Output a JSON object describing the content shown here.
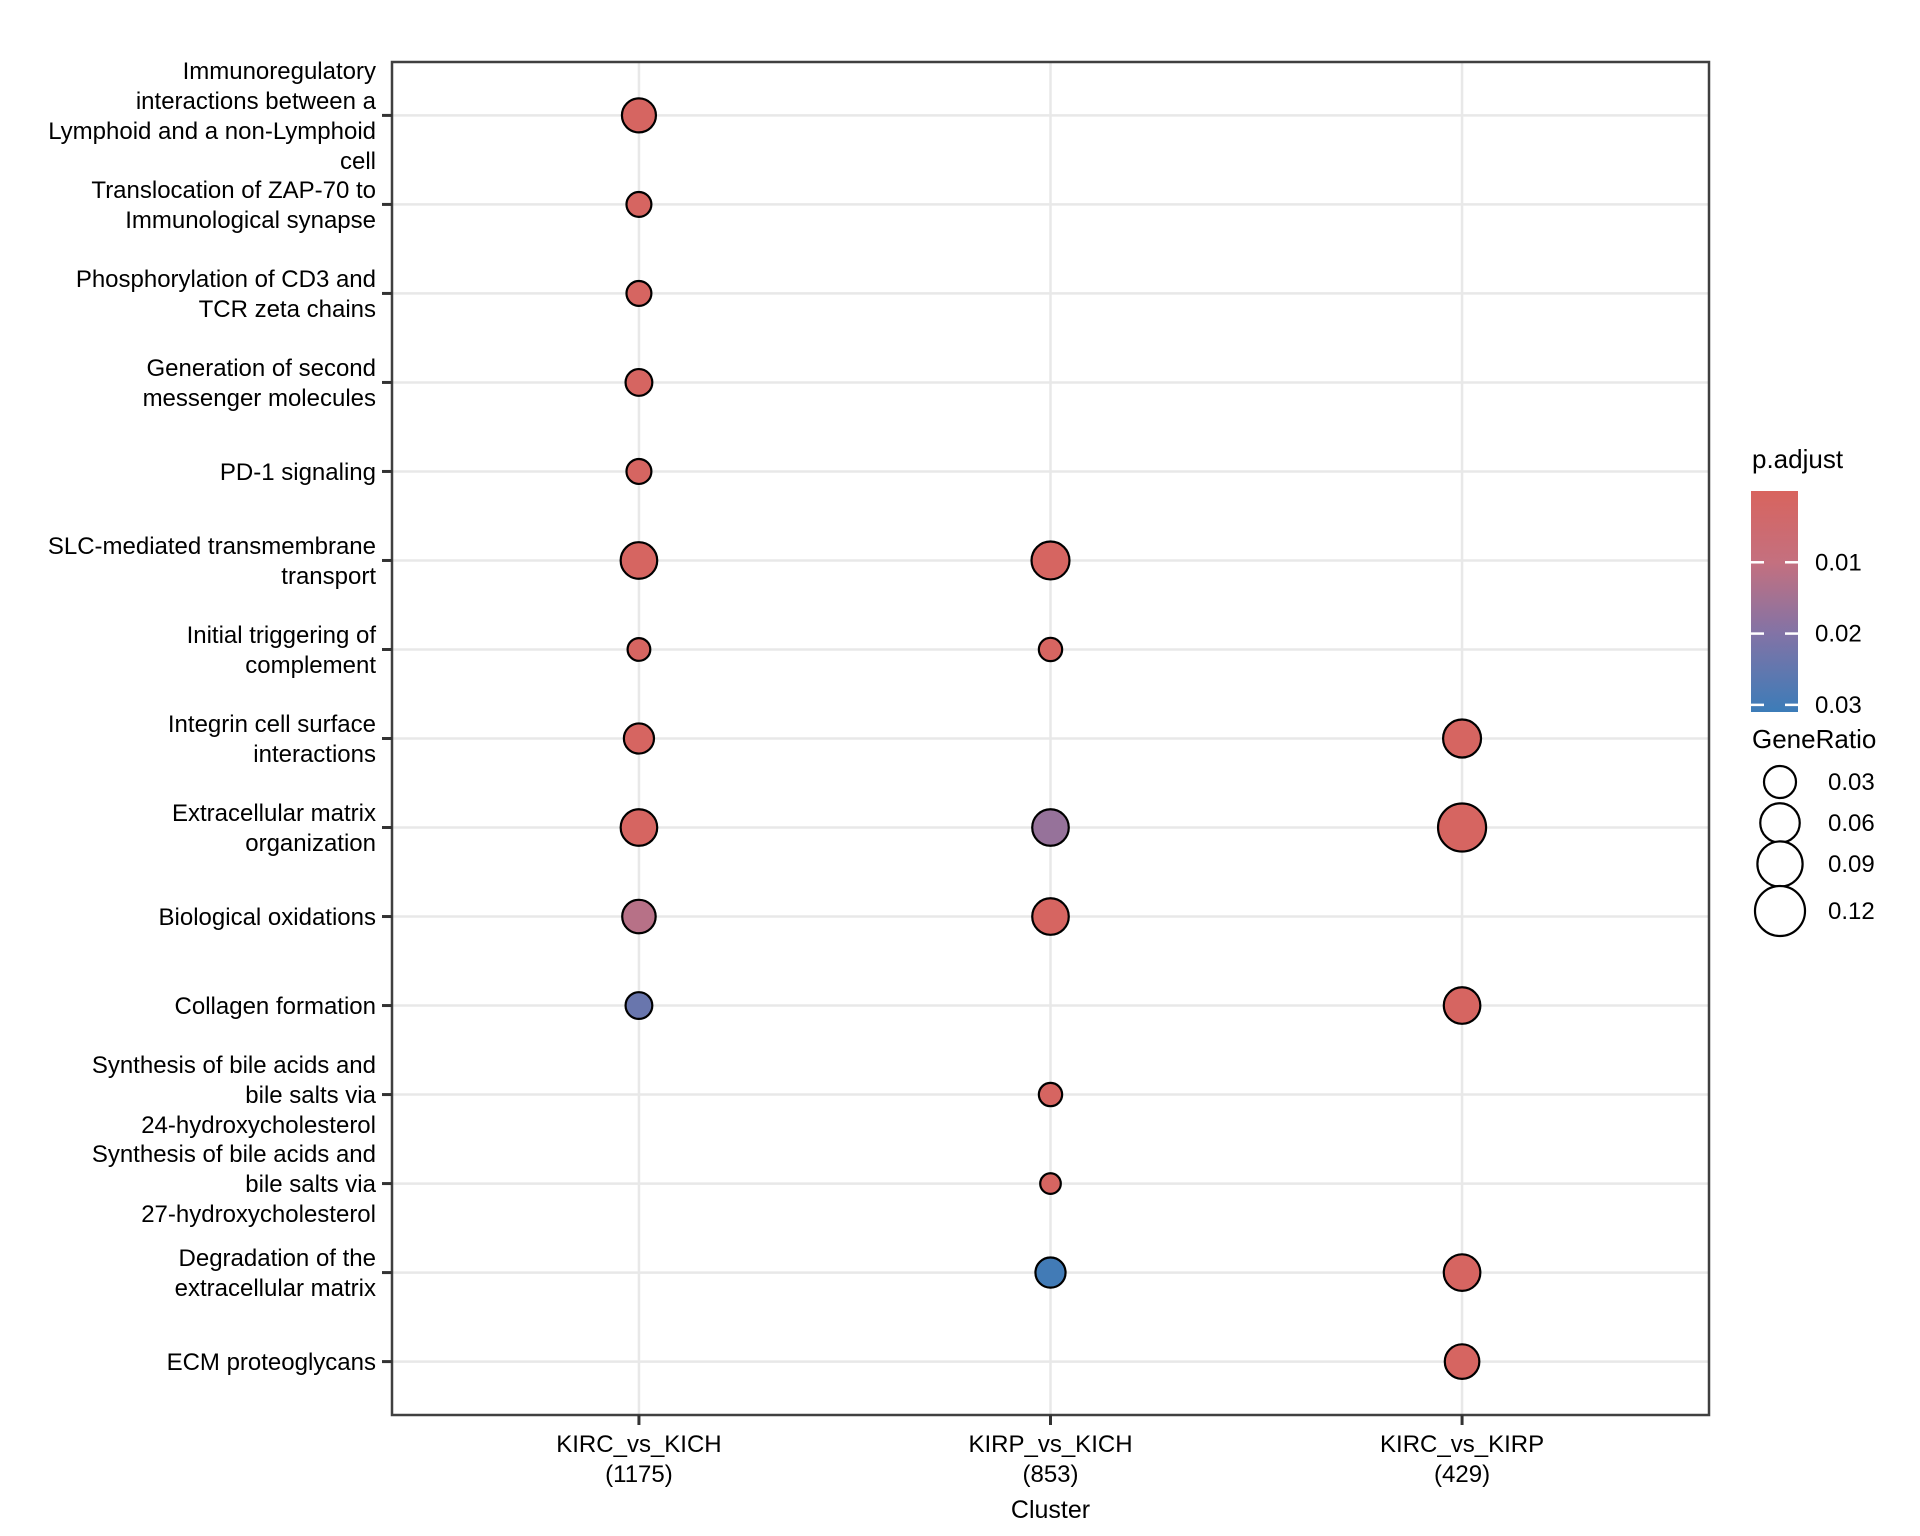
{
  "chart_data": {
    "type": "scatter",
    "subtype": "enrichment-dotplot",
    "title": "",
    "xlabel": "Cluster",
    "ylabel": "",
    "grid": "major-only",
    "legend_position": "right",
    "clusters": [
      {
        "label": "KIRC_vs_KICH",
        "count": "(1175)"
      },
      {
        "label": "KIRP_vs_KICH",
        "count": "(853)"
      },
      {
        "label": "KIRC_vs_KIRP",
        "count": "(429)"
      }
    ],
    "categories": [
      {
        "name": "Immunoregulatory interactions between a Lymphoid and a non-Lymphoid cell",
        "lines": [
          "Immunoregulatory",
          "interactions between a",
          "Lymphoid and a non-Lymphoid",
          "cell"
        ]
      },
      {
        "name": "Translocation of ZAP-70 to Immunological synapse",
        "lines": [
          "Translocation of ZAP-70 to",
          "Immunological synapse"
        ]
      },
      {
        "name": "Phosphorylation of CD3 and TCR zeta chains",
        "lines": [
          "Phosphorylation of CD3 and",
          "TCR zeta chains"
        ]
      },
      {
        "name": "Generation of second messenger molecules",
        "lines": [
          "Generation of second",
          "messenger molecules"
        ]
      },
      {
        "name": "PD-1 signaling",
        "lines": [
          "PD-1 signaling"
        ]
      },
      {
        "name": "SLC-mediated transmembrane transport",
        "lines": [
          "SLC-mediated transmembrane",
          "transport"
        ]
      },
      {
        "name": "Initial triggering of complement",
        "lines": [
          "Initial triggering of",
          "complement"
        ]
      },
      {
        "name": "Integrin cell surface interactions",
        "lines": [
          "Integrin cell surface",
          "interactions"
        ]
      },
      {
        "name": "Extracellular matrix organization",
        "lines": [
          "Extracellular matrix",
          "organization"
        ]
      },
      {
        "name": "Biological oxidations",
        "lines": [
          "Biological oxidations"
        ]
      },
      {
        "name": "Collagen formation",
        "lines": [
          "Collagen formation"
        ]
      },
      {
        "name": "Synthesis of bile acids and bile salts via 24-hydroxycholesterol",
        "lines": [
          "Synthesis of bile acids and",
          "bile salts via",
          "24-hydroxycholesterol"
        ]
      },
      {
        "name": "Synthesis of bile acids and bile salts via 27-hydroxycholesterol",
        "lines": [
          "Synthesis of bile acids and",
          "bile salts via",
          "27-hydroxycholesterol"
        ]
      },
      {
        "name": "Degradation of the extracellular matrix",
        "lines": [
          "Degradation of the",
          "extracellular matrix"
        ]
      },
      {
        "name": "ECM proteoglycans",
        "lines": [
          "ECM proteoglycans"
        ]
      }
    ],
    "points": [
      {
        "cluster": 0,
        "category": 0,
        "gene_ratio": 0.037,
        "p_adjust": 0.001
      },
      {
        "cluster": 0,
        "category": 1,
        "gene_ratio": 0.011,
        "p_adjust": 0.001
      },
      {
        "cluster": 0,
        "category": 2,
        "gene_ratio": 0.011,
        "p_adjust": 0.001
      },
      {
        "cluster": 0,
        "category": 3,
        "gene_ratio": 0.015,
        "p_adjust": 0.001
      },
      {
        "cluster": 0,
        "category": 4,
        "gene_ratio": 0.011,
        "p_adjust": 0.001
      },
      {
        "cluster": 0,
        "category": 5,
        "gene_ratio": 0.047,
        "p_adjust": 0.001
      },
      {
        "cluster": 0,
        "category": 6,
        "gene_ratio": 0.007,
        "p_adjust": 0.001
      },
      {
        "cluster": 0,
        "category": 7,
        "gene_ratio": 0.024,
        "p_adjust": 0.001
      },
      {
        "cluster": 0,
        "category": 8,
        "gene_ratio": 0.047,
        "p_adjust": 0.001
      },
      {
        "cluster": 0,
        "category": 9,
        "gene_ratio": 0.035,
        "p_adjust": 0.012
      },
      {
        "cluster": 0,
        "category": 10,
        "gene_ratio": 0.015,
        "p_adjust": 0.024
      },
      {
        "cluster": 1,
        "category": 5,
        "gene_ratio": 0.053,
        "p_adjust": 0.001
      },
      {
        "cluster": 1,
        "category": 6,
        "gene_ratio": 0.008,
        "p_adjust": 0.001
      },
      {
        "cluster": 1,
        "category": 8,
        "gene_ratio": 0.047,
        "p_adjust": 0.017
      },
      {
        "cluster": 1,
        "category": 9,
        "gene_ratio": 0.047,
        "p_adjust": 0.001
      },
      {
        "cluster": 1,
        "category": 11,
        "gene_ratio": 0.008,
        "p_adjust": 0.001
      },
      {
        "cluster": 1,
        "category": 12,
        "gene_ratio": 0.004,
        "p_adjust": 0.001
      },
      {
        "cluster": 1,
        "category": 13,
        "gene_ratio": 0.024,
        "p_adjust": 0.03
      },
      {
        "cluster": 2,
        "category": 7,
        "gene_ratio": 0.053,
        "p_adjust": 0.001
      },
      {
        "cluster": 2,
        "category": 8,
        "gene_ratio": 0.107,
        "p_adjust": 0.001
      },
      {
        "cluster": 2,
        "category": 10,
        "gene_ratio": 0.047,
        "p_adjust": 0.001
      },
      {
        "cluster": 2,
        "category": 13,
        "gene_ratio": 0.047,
        "p_adjust": 0.001
      },
      {
        "cluster": 2,
        "category": 14,
        "gene_ratio": 0.039,
        "p_adjust": 0.001
      }
    ],
    "legend": {
      "p_adjust": {
        "title": "p.adjust",
        "ticks": [
          "0.01",
          "0.02",
          "0.03"
        ],
        "tick_values": [
          0.01,
          0.02,
          0.03
        ],
        "domain": [
          0,
          0.031
        ],
        "color_stops": [
          {
            "t": 0,
            "color": "#D8645E"
          },
          {
            "t": 0.323,
            "color": "#C4707F"
          },
          {
            "t": 0.645,
            "color": "#8273A6"
          },
          {
            "t": 1,
            "color": "#3C7CB8"
          }
        ]
      },
      "gene_ratio": {
        "title": "GeneRatio",
        "sizes": [
          "0.03",
          "0.06",
          "0.09",
          "0.12"
        ],
        "size_values": [
          0.03,
          0.06,
          0.09,
          0.12
        ]
      }
    },
    "colors": {
      "dot_stroke": "#000000",
      "panel_border": "#404040",
      "gridline": "#E8E8E8",
      "tick_mark": "#333333",
      "background": "#FFFFFF"
    }
  }
}
